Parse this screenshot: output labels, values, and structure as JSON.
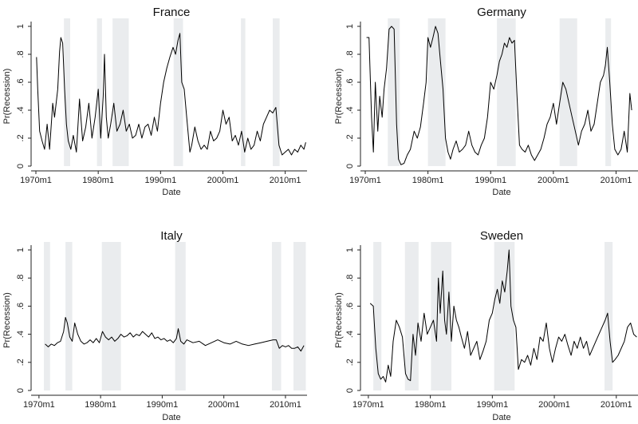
{
  "chart_data": [
    {
      "type": "line",
      "title": "France",
      "xlabel": "Date",
      "ylabel": "Pr(Recession)",
      "xlim": [
        1970,
        2013.5
      ],
      "ylim": [
        0,
        1
      ],
      "x_ticks": [
        1970,
        1980,
        1990,
        2000,
        2010
      ],
      "x_tick_labels": [
        "1970m1",
        "1980m1",
        "1990m1",
        "2000m1",
        "2010m1"
      ],
      "y_ticks": [
        0,
        0.2,
        0.4,
        0.6,
        0.8,
        1
      ],
      "y_tick_labels": [
        "0",
        ".2",
        ".4",
        ".6",
        ".8",
        "1"
      ],
      "recession_bands": [
        [
          1974.5,
          1975.5
        ],
        [
          1979.8,
          1980.6
        ],
        [
          1982.3,
          1984.9
        ],
        [
          1992.1,
          1993.6
        ],
        [
          2002.9,
          2003.6
        ],
        [
          2008.0,
          2009.1
        ]
      ],
      "series": [
        {
          "x": [
            1970.1,
            1970.3,
            1970.6,
            1971.0,
            1971.4,
            1971.8,
            1972.2,
            1972.7,
            1973.0,
            1973.5,
            1973.8,
            1974.0,
            1974.3,
            1974.6,
            1974.9,
            1975.2,
            1975.6,
            1976.0,
            1976.5,
            1977.0,
            1977.5,
            1978.0,
            1978.5,
            1979.0,
            1979.5,
            1980.0,
            1980.4,
            1980.8,
            1981.0,
            1981.3,
            1981.6,
            1982.0,
            1982.5,
            1983.0,
            1983.5,
            1984.0,
            1984.5,
            1985.0,
            1985.5,
            1986.0,
            1986.5,
            1987.0,
            1987.5,
            1988.0,
            1988.5,
            1989.0,
            1989.5,
            1990.0,
            1990.5,
            1991.0,
            1991.5,
            1992.0,
            1992.4,
            1992.8,
            1993.1,
            1993.4,
            1993.8,
            1994.2,
            1994.7,
            1995.0,
            1995.5,
            1996.0,
            1996.5,
            1997.0,
            1997.5,
            1998.0,
            1998.5,
            1999.0,
            1999.5,
            2000.0,
            2000.5,
            2001.0,
            2001.5,
            2002.0,
            2002.5,
            2003.0,
            2003.5,
            2004.0,
            2004.5,
            2005.0,
            2005.5,
            2006.0,
            2006.5,
            2007.0,
            2007.5,
            2008.0,
            2008.5,
            2009.0,
            2009.5,
            2010.0,
            2010.5,
            2011.0,
            2011.5,
            2012.0,
            2012.5,
            2013.0,
            2013.3
          ],
          "y": [
            0.78,
            0.55,
            0.25,
            0.18,
            0.12,
            0.3,
            0.12,
            0.45,
            0.35,
            0.55,
            0.82,
            0.92,
            0.88,
            0.55,
            0.3,
            0.18,
            0.12,
            0.22,
            0.1,
            0.48,
            0.18,
            0.28,
            0.45,
            0.2,
            0.35,
            0.55,
            0.2,
            0.5,
            0.8,
            0.35,
            0.2,
            0.3,
            0.45,
            0.25,
            0.3,
            0.4,
            0.25,
            0.3,
            0.2,
            0.22,
            0.3,
            0.2,
            0.28,
            0.3,
            0.22,
            0.35,
            0.25,
            0.45,
            0.6,
            0.7,
            0.78,
            0.85,
            0.8,
            0.9,
            0.95,
            0.6,
            0.55,
            0.35,
            0.1,
            0.15,
            0.28,
            0.18,
            0.12,
            0.15,
            0.12,
            0.25,
            0.18,
            0.2,
            0.25,
            0.4,
            0.3,
            0.35,
            0.18,
            0.22,
            0.15,
            0.25,
            0.1,
            0.2,
            0.12,
            0.15,
            0.25,
            0.18,
            0.3,
            0.35,
            0.4,
            0.38,
            0.42,
            0.15,
            0.08,
            0.1,
            0.12,
            0.08,
            0.12,
            0.1,
            0.15,
            0.12,
            0.17
          ]
        }
      ]
    },
    {
      "type": "line",
      "title": "Germany",
      "xlabel": "Date",
      "ylabel": "Pr(Recession)",
      "xlim": [
        1970,
        2013.5
      ],
      "ylim": [
        0,
        1
      ],
      "x_ticks": [
        1970,
        1980,
        1990,
        2000,
        2010
      ],
      "x_tick_labels": [
        "1970m1",
        "1980m1",
        "1990m1",
        "2000m1",
        "2010m1"
      ],
      "y_ticks": [
        0,
        0.2,
        0.4,
        0.6,
        0.8,
        1
      ],
      "y_tick_labels": [
        "0",
        ".2",
        ".4",
        ".6",
        ".8",
        "1"
      ],
      "recession_bands": [
        [
          1973.6,
          1975.5
        ],
        [
          1980.0,
          1982.8
        ],
        [
          1991.0,
          1994.0
        ],
        [
          2001.0,
          2003.8
        ],
        [
          2008.3,
          2009.2
        ]
      ],
      "series": [
        {
          "x": [
            1970.2,
            1970.6,
            1971.0,
            1971.3,
            1971.6,
            1972.0,
            1972.3,
            1972.7,
            1973.0,
            1973.4,
            1973.8,
            1974.2,
            1974.6,
            1975.0,
            1975.3,
            1975.7,
            1976.2,
            1976.7,
            1977.2,
            1977.8,
            1978.3,
            1978.8,
            1979.3,
            1979.7,
            1980.0,
            1980.4,
            1980.8,
            1981.2,
            1981.6,
            1982.0,
            1982.4,
            1982.8,
            1983.2,
            1983.6,
            1984.0,
            1984.5,
            1985.0,
            1985.5,
            1986.0,
            1986.5,
            1987.0,
            1987.5,
            1988.0,
            1988.5,
            1989.0,
            1989.5,
            1990.0,
            1990.5,
            1991.0,
            1991.4,
            1991.8,
            1992.2,
            1992.6,
            1993.0,
            1993.4,
            1993.8,
            1994.2,
            1994.6,
            1995.0,
            1995.5,
            1996.0,
            1996.5,
            1997.0,
            1997.5,
            1998.0,
            1998.5,
            1999.0,
            1999.5,
            2000.0,
            2000.5,
            2001.0,
            2001.5,
            2002.0,
            2002.5,
            2003.0,
            2003.5,
            2004.0,
            2004.5,
            2005.0,
            2005.5,
            2006.0,
            2006.5,
            2007.0,
            2007.5,
            2008.0,
            2008.3,
            2008.6,
            2009.0,
            2009.4,
            2009.8,
            2010.3,
            2010.8,
            2011.3,
            2011.8,
            2012.2,
            2012.5
          ],
          "y": [
            0.92,
            0.92,
            0.35,
            0.1,
            0.6,
            0.25,
            0.5,
            0.35,
            0.55,
            0.7,
            0.98,
            1.0,
            0.98,
            0.3,
            0.05,
            0.01,
            0.02,
            0.08,
            0.12,
            0.25,
            0.2,
            0.28,
            0.45,
            0.6,
            0.92,
            0.85,
            0.92,
            1.0,
            0.95,
            0.75,
            0.55,
            0.2,
            0.1,
            0.05,
            0.12,
            0.18,
            0.1,
            0.12,
            0.15,
            0.25,
            0.15,
            0.1,
            0.08,
            0.15,
            0.2,
            0.35,
            0.6,
            0.55,
            0.65,
            0.75,
            0.8,
            0.88,
            0.85,
            0.92,
            0.88,
            0.9,
            0.5,
            0.15,
            0.12,
            0.1,
            0.15,
            0.08,
            0.04,
            0.08,
            0.12,
            0.2,
            0.3,
            0.35,
            0.45,
            0.3,
            0.45,
            0.6,
            0.55,
            0.45,
            0.35,
            0.25,
            0.15,
            0.25,
            0.3,
            0.4,
            0.25,
            0.3,
            0.45,
            0.6,
            0.65,
            0.72,
            0.85,
            0.6,
            0.3,
            0.12,
            0.08,
            0.12,
            0.25,
            0.1,
            0.52,
            0.4
          ]
        }
      ]
    },
    {
      "type": "line",
      "title": "Italy",
      "xlabel": "Date",
      "ylabel": "Pr(Recession)",
      "xlim": [
        1969.5,
        2013.5
      ],
      "ylim": [
        0,
        1
      ],
      "x_ticks": [
        1970,
        1980,
        1990,
        2000,
        2010
      ],
      "x_tick_labels": [
        "1970m1",
        "1980m1",
        "1990m1",
        "2000m1",
        "2010m1"
      ],
      "y_ticks": [
        0,
        0.2,
        0.4,
        0.6,
        0.8,
        1
      ],
      "y_tick_labels": [
        "0",
        ".2",
        ".4",
        ".6",
        ".8",
        "1"
      ],
      "recession_bands": [
        [
          1970.8,
          1971.8
        ],
        [
          1974.3,
          1975.4
        ],
        [
          1980.2,
          1983.3
        ],
        [
          1992.1,
          1993.8
        ],
        [
          2007.8,
          2009.3
        ],
        [
          2011.3,
          2013.3
        ]
      ],
      "series": [
        {
          "x": [
            1971.0,
            1971.5,
            1972.0,
            1972.5,
            1973.0,
            1973.5,
            1974.0,
            1974.3,
            1974.6,
            1975.0,
            1975.4,
            1975.8,
            1976.3,
            1976.8,
            1977.3,
            1977.8,
            1978.3,
            1978.8,
            1979.3,
            1979.8,
            1980.3,
            1980.8,
            1981.3,
            1981.8,
            1982.3,
            1982.8,
            1983.3,
            1983.8,
            1984.3,
            1984.8,
            1985.3,
            1985.8,
            1986.3,
            1986.8,
            1987.3,
            1987.8,
            1988.3,
            1988.8,
            1989.3,
            1989.8,
            1990.3,
            1990.8,
            1991.3,
            1991.8,
            1992.3,
            1992.6,
            1993.0,
            1993.5,
            1994.0,
            1995.0,
            1996.0,
            1997.0,
            1998.0,
            1999.0,
            2000.0,
            2001.0,
            2002.0,
            2003.0,
            2004.0,
            2005.0,
            2006.0,
            2007.0,
            2008.0,
            2008.5,
            2009.0,
            2009.5,
            2010.0,
            2010.5,
            2011.0,
            2011.5,
            2012.0,
            2012.5,
            2013.0
          ],
          "y": [
            0.33,
            0.31,
            0.33,
            0.32,
            0.34,
            0.35,
            0.42,
            0.52,
            0.48,
            0.38,
            0.35,
            0.48,
            0.4,
            0.35,
            0.33,
            0.34,
            0.36,
            0.34,
            0.37,
            0.34,
            0.42,
            0.38,
            0.36,
            0.38,
            0.35,
            0.37,
            0.4,
            0.38,
            0.39,
            0.41,
            0.38,
            0.4,
            0.39,
            0.42,
            0.4,
            0.38,
            0.41,
            0.37,
            0.38,
            0.36,
            0.37,
            0.35,
            0.36,
            0.34,
            0.37,
            0.44,
            0.35,
            0.33,
            0.36,
            0.34,
            0.35,
            0.32,
            0.34,
            0.36,
            0.34,
            0.33,
            0.35,
            0.33,
            0.32,
            0.33,
            0.34,
            0.35,
            0.36,
            0.36,
            0.3,
            0.32,
            0.31,
            0.32,
            0.3,
            0.3,
            0.31,
            0.28,
            0.32
          ]
        }
      ]
    },
    {
      "type": "line",
      "title": "Sweden",
      "xlabel": "Date",
      "ylabel": "Pr(Recession)",
      "xlim": [
        1969.5,
        2013.5
      ],
      "ylim": [
        0,
        1
      ],
      "x_ticks": [
        1970,
        1980,
        1990,
        2000,
        2010
      ],
      "x_tick_labels": [
        "1970m1",
        "1980m1",
        "1990m1",
        "2000m1",
        "2010m1"
      ],
      "y_ticks": [
        0,
        0.2,
        0.4,
        0.6,
        0.8,
        1
      ],
      "y_tick_labels": [
        "0",
        ".2",
        ".4",
        ".6",
        ".8",
        "1"
      ],
      "recession_bands": [
        [
          1970.8,
          1972.1
        ],
        [
          1975.9,
          1978.1
        ],
        [
          1980.1,
          1983.4
        ],
        [
          1990.3,
          1993.6
        ],
        [
          2008.1,
          2009.4
        ]
      ],
      "series": [
        {
          "x": [
            1970.3,
            1970.8,
            1971.2,
            1971.6,
            1972.0,
            1972.4,
            1972.8,
            1973.2,
            1973.6,
            1974.0,
            1974.5,
            1975.0,
            1975.5,
            1976.0,
            1976.4,
            1976.8,
            1977.2,
            1977.6,
            1978.0,
            1978.5,
            1979.0,
            1979.5,
            1980.0,
            1980.5,
            1981.0,
            1981.3,
            1981.6,
            1982.0,
            1982.3,
            1982.6,
            1983.0,
            1983.4,
            1983.8,
            1984.2,
            1984.6,
            1985.0,
            1985.5,
            1986.0,
            1986.5,
            1987.0,
            1987.5,
            1988.0,
            1988.5,
            1989.0,
            1989.5,
            1990.0,
            1990.4,
            1990.8,
            1991.2,
            1991.6,
            1992.0,
            1992.4,
            1992.7,
            1993.0,
            1993.4,
            1993.8,
            1994.2,
            1994.7,
            1995.2,
            1995.7,
            1996.2,
            1996.7,
            1997.2,
            1997.7,
            1998.2,
            1998.7,
            1999.2,
            1999.7,
            2000.2,
            2000.7,
            2001.2,
            2001.7,
            2002.2,
            2002.7,
            2003.2,
            2003.7,
            2004.2,
            2004.7,
            2005.2,
            2005.7,
            2006.2,
            2006.7,
            2007.2,
            2007.7,
            2008.2,
            2008.6,
            2009.0,
            2009.4,
            2009.8,
            2010.3,
            2010.8,
            2011.3,
            2011.8,
            2012.3,
            2012.8,
            2013.3
          ],
          "y": [
            0.62,
            0.6,
            0.3,
            0.12,
            0.08,
            0.1,
            0.06,
            0.18,
            0.1,
            0.35,
            0.5,
            0.45,
            0.38,
            0.12,
            0.08,
            0.07,
            0.4,
            0.25,
            0.48,
            0.35,
            0.55,
            0.4,
            0.45,
            0.5,
            0.35,
            0.8,
            0.55,
            0.85,
            0.5,
            0.4,
            0.7,
            0.35,
            0.6,
            0.5,
            0.45,
            0.38,
            0.3,
            0.42,
            0.25,
            0.3,
            0.35,
            0.22,
            0.28,
            0.35,
            0.5,
            0.55,
            0.65,
            0.72,
            0.62,
            0.78,
            0.7,
            0.85,
            1.0,
            0.6,
            0.5,
            0.45,
            0.15,
            0.22,
            0.2,
            0.25,
            0.18,
            0.3,
            0.22,
            0.38,
            0.35,
            0.48,
            0.3,
            0.2,
            0.3,
            0.38,
            0.35,
            0.4,
            0.32,
            0.25,
            0.35,
            0.3,
            0.38,
            0.3,
            0.35,
            0.25,
            0.3,
            0.35,
            0.4,
            0.45,
            0.5,
            0.55,
            0.35,
            0.2,
            0.22,
            0.25,
            0.3,
            0.35,
            0.45,
            0.48,
            0.4,
            0.38
          ]
        }
      ]
    }
  ]
}
